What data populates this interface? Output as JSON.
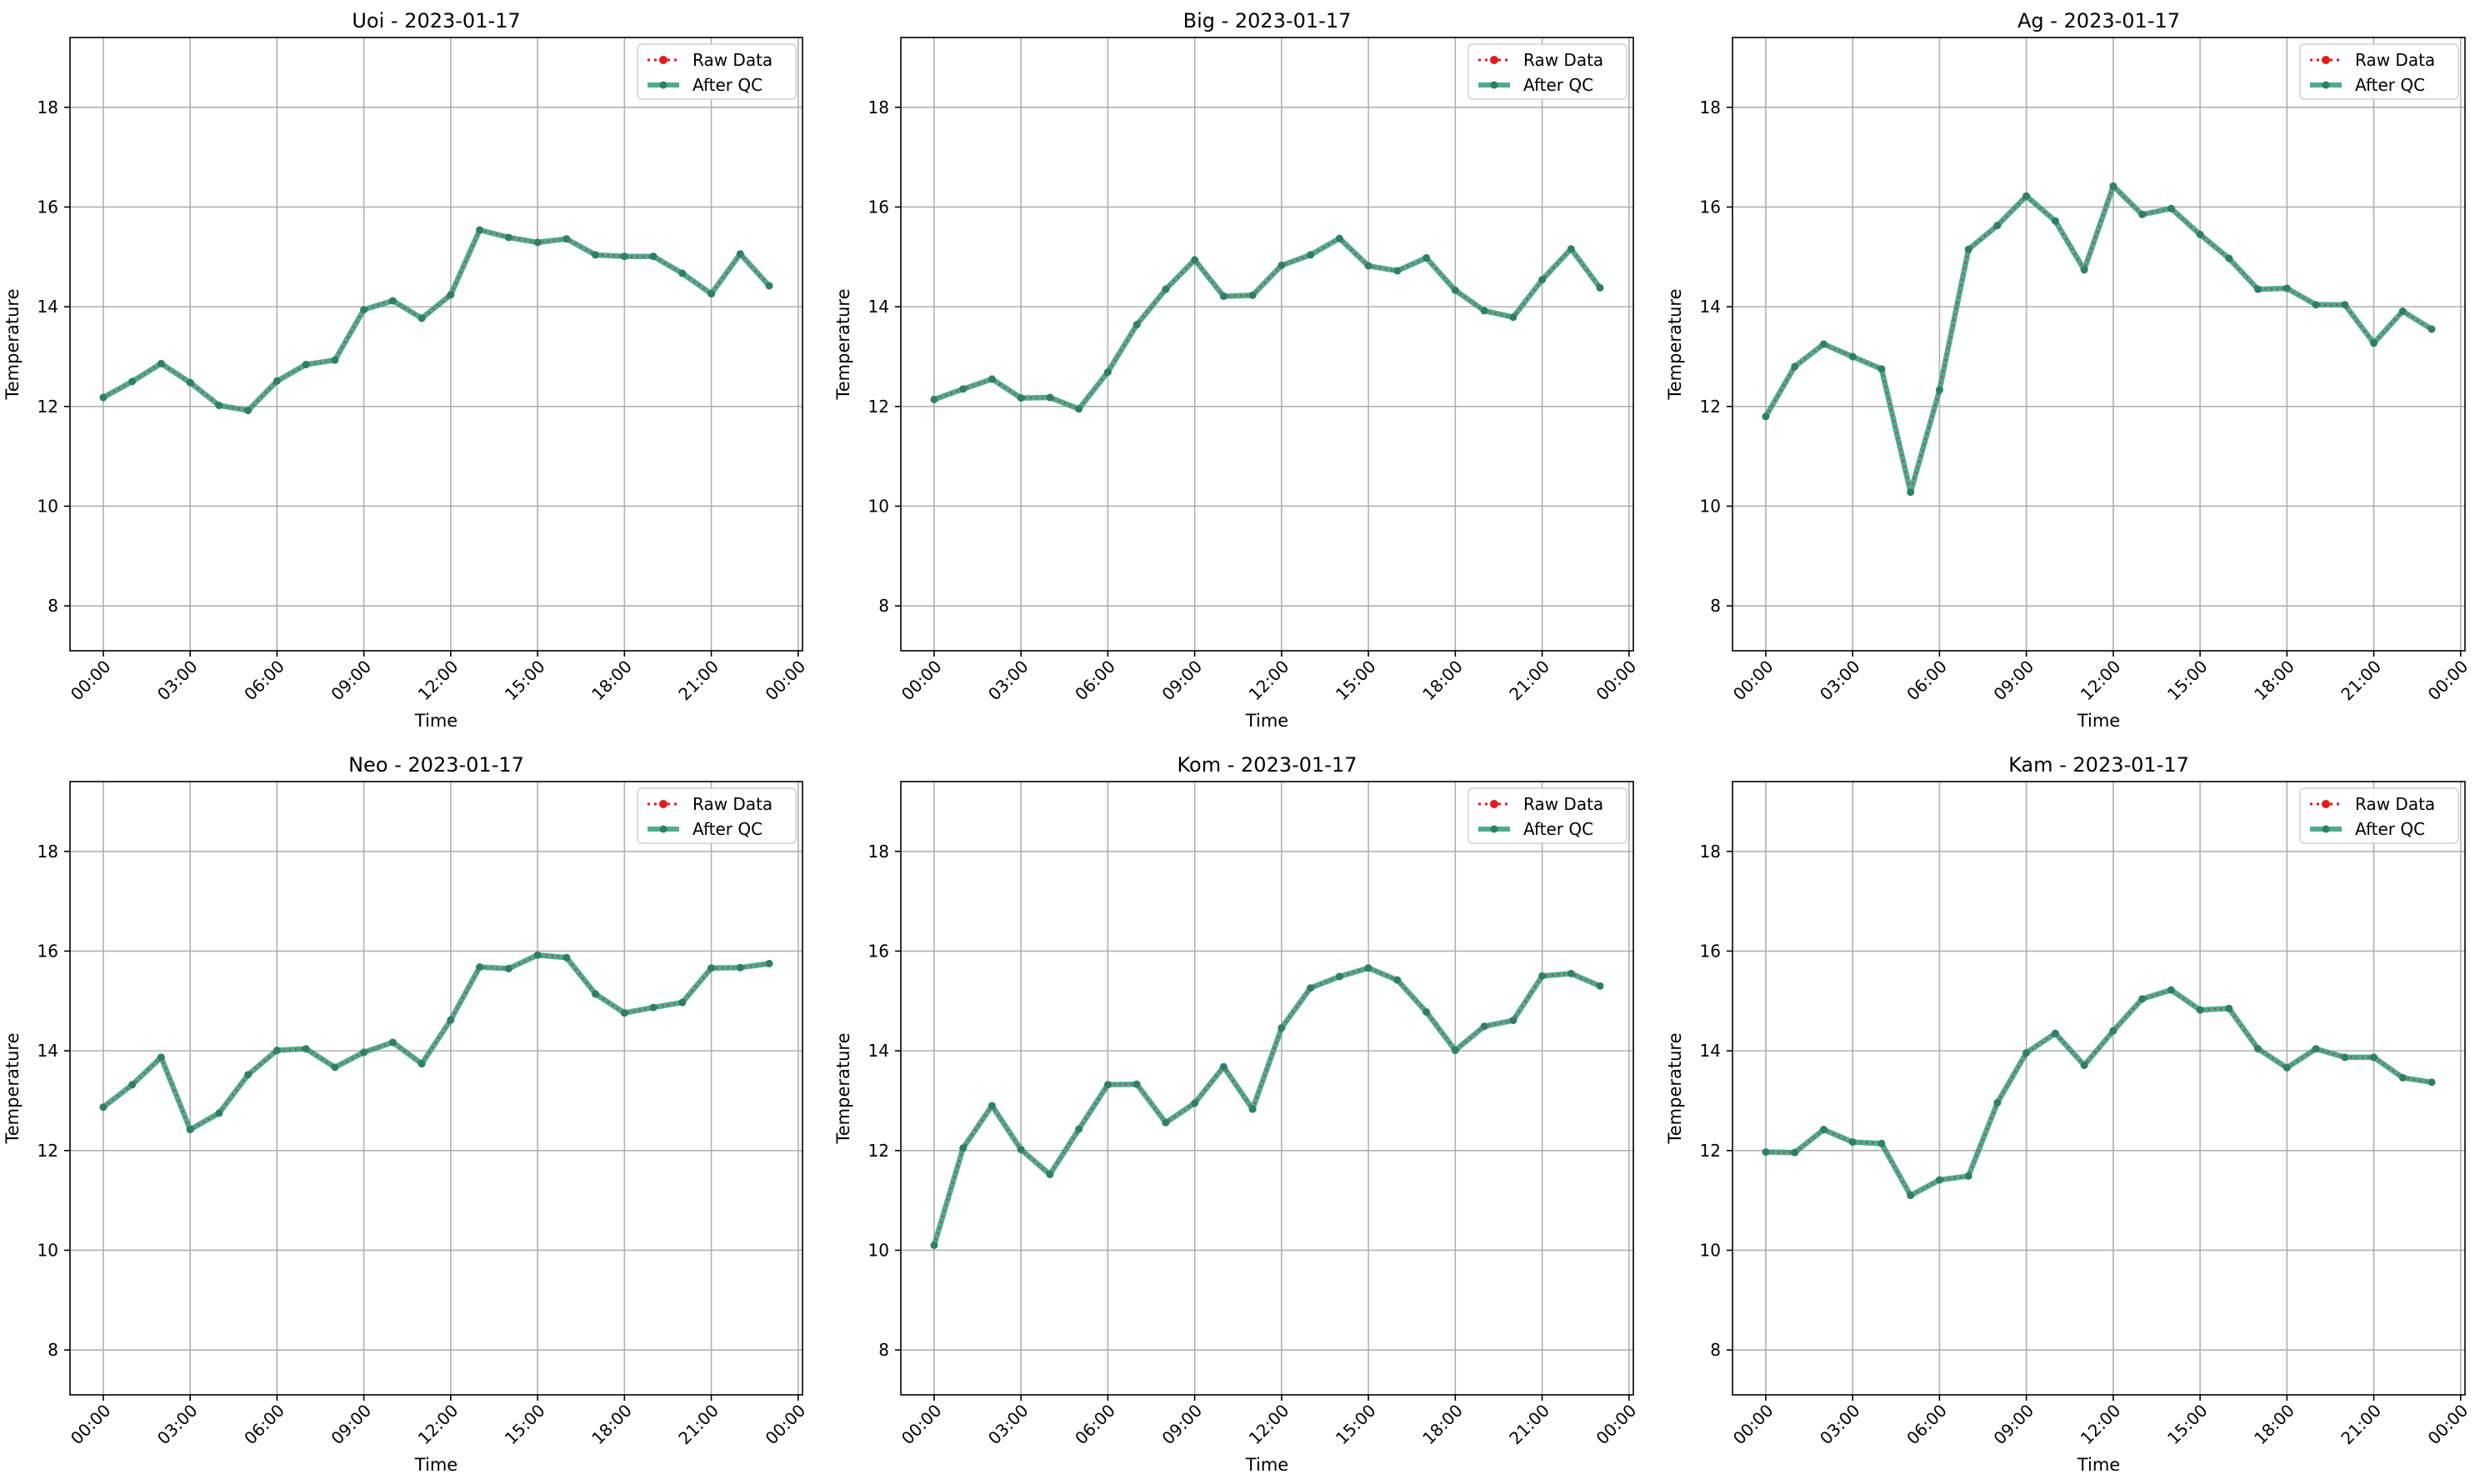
{
  "figure": {
    "legend": {
      "raw_label": "Raw Data",
      "qc_label": "After QC"
    },
    "colors": {
      "raw": "#e31a1c",
      "qc": "#2e9e7c",
      "qc_marker": "#2f7f66",
      "grid": "#b0b0b0",
      "axis": "#000000"
    }
  },
  "chart_data": [
    {
      "type": "line",
      "title": "Uoi - 2023-01-17",
      "xlabel": "Time",
      "ylabel": "Temperature",
      "x": [
        "00:00",
        "01:00",
        "02:00",
        "03:00",
        "04:00",
        "05:00",
        "06:00",
        "07:00",
        "08:00",
        "09:00",
        "10:00",
        "11:00",
        "12:00",
        "13:00",
        "14:00",
        "15:00",
        "16:00",
        "17:00",
        "18:00",
        "19:00",
        "20:00",
        "21:00",
        "22:00",
        "23:00"
      ],
      "xticks": [
        "00:00",
        "03:00",
        "06:00",
        "09:00",
        "12:00",
        "15:00",
        "18:00",
        "21:00",
        "00:00"
      ],
      "ylim": [
        7.1,
        19.4
      ],
      "yticks": [
        8,
        10,
        12,
        14,
        16,
        18
      ],
      "grid": true,
      "legend_position": "upper-right",
      "series": [
        {
          "name": "Raw Data",
          "values": [
            12.18,
            12.5,
            12.86,
            12.48,
            12.02,
            11.92,
            12.51,
            12.84,
            12.93,
            13.94,
            14.12,
            13.77,
            14.24,
            15.54,
            15.39,
            15.29,
            15.36,
            15.04,
            15.01,
            15.01,
            14.67,
            14.26,
            15.06,
            14.42
          ]
        },
        {
          "name": "After QC",
          "values": [
            12.18,
            12.5,
            12.86,
            12.48,
            12.02,
            11.92,
            12.51,
            12.84,
            12.93,
            13.94,
            14.12,
            13.77,
            14.24,
            15.54,
            15.39,
            15.29,
            15.36,
            15.04,
            15.01,
            15.01,
            14.67,
            14.26,
            15.06,
            14.42
          ]
        }
      ]
    },
    {
      "type": "line",
      "title": "Big - 2023-01-17",
      "xlabel": "Time",
      "ylabel": "Temperature",
      "x": [
        "00:00",
        "01:00",
        "02:00",
        "03:00",
        "04:00",
        "05:00",
        "06:00",
        "07:00",
        "08:00",
        "09:00",
        "10:00",
        "11:00",
        "12:00",
        "13:00",
        "14:00",
        "15:00",
        "16:00",
        "17:00",
        "18:00",
        "19:00",
        "20:00",
        "21:00",
        "22:00",
        "23:00"
      ],
      "xticks": [
        "00:00",
        "03:00",
        "06:00",
        "09:00",
        "12:00",
        "15:00",
        "18:00",
        "21:00",
        "00:00"
      ],
      "ylim": [
        7.1,
        19.4
      ],
      "yticks": [
        8,
        10,
        12,
        14,
        16,
        18
      ],
      "grid": true,
      "legend_position": "upper-right",
      "series": [
        {
          "name": "Raw Data",
          "values": [
            12.14,
            12.35,
            12.55,
            12.17,
            12.18,
            11.95,
            12.69,
            13.64,
            14.35,
            14.94,
            14.21,
            14.23,
            14.83,
            15.04,
            15.37,
            14.82,
            14.72,
            14.98,
            14.33,
            13.92,
            13.79,
            14.54,
            15.16,
            14.38
          ]
        },
        {
          "name": "After QC",
          "values": [
            12.14,
            12.35,
            12.55,
            12.17,
            12.18,
            11.95,
            12.69,
            13.64,
            14.35,
            14.94,
            14.21,
            14.23,
            14.83,
            15.04,
            15.37,
            14.82,
            14.72,
            14.98,
            14.33,
            13.92,
            13.79,
            14.54,
            15.16,
            14.38
          ]
        }
      ]
    },
    {
      "type": "line",
      "title": "Ag - 2023-01-17",
      "xlabel": "Time",
      "ylabel": "Temperature",
      "x": [
        "00:00",
        "01:00",
        "02:00",
        "03:00",
        "04:00",
        "05:00",
        "06:00",
        "07:00",
        "08:00",
        "09:00",
        "10:00",
        "11:00",
        "12:00",
        "13:00",
        "14:00",
        "15:00",
        "16:00",
        "17:00",
        "18:00",
        "19:00",
        "20:00",
        "21:00",
        "22:00",
        "23:00"
      ],
      "xticks": [
        "00:00",
        "03:00",
        "06:00",
        "09:00",
        "12:00",
        "15:00",
        "18:00",
        "21:00",
        "00:00"
      ],
      "ylim": [
        7.1,
        19.4
      ],
      "yticks": [
        8,
        10,
        12,
        14,
        16,
        18
      ],
      "grid": true,
      "legend_position": "upper-right",
      "series": [
        {
          "name": "Raw Data",
          "values": [
            11.8,
            12.8,
            13.25,
            13.0,
            12.75,
            10.28,
            12.33,
            15.15,
            15.63,
            16.22,
            15.72,
            14.74,
            16.42,
            15.85,
            15.97,
            15.45,
            14.97,
            14.35,
            14.37,
            14.04,
            14.04,
            13.27,
            13.91,
            13.55
          ]
        },
        {
          "name": "After QC",
          "values": [
            11.8,
            12.8,
            13.25,
            13.0,
            12.75,
            10.28,
            12.33,
            15.15,
            15.63,
            16.22,
            15.72,
            14.74,
            16.42,
            15.85,
            15.97,
            15.45,
            14.97,
            14.35,
            14.37,
            14.04,
            14.04,
            13.27,
            13.91,
            13.55
          ]
        }
      ]
    },
    {
      "type": "line",
      "title": "Neo - 2023-01-17",
      "xlabel": "Time",
      "ylabel": "Temperature",
      "x": [
        "00:00",
        "01:00",
        "02:00",
        "03:00",
        "04:00",
        "05:00",
        "06:00",
        "07:00",
        "08:00",
        "09:00",
        "10:00",
        "11:00",
        "12:00",
        "13:00",
        "14:00",
        "15:00",
        "16:00",
        "17:00",
        "18:00",
        "19:00",
        "20:00",
        "21:00",
        "22:00",
        "23:00"
      ],
      "xticks": [
        "00:00",
        "03:00",
        "06:00",
        "09:00",
        "12:00",
        "15:00",
        "18:00",
        "21:00",
        "00:00"
      ],
      "ylim": [
        7.1,
        19.4
      ],
      "yticks": [
        8,
        10,
        12,
        14,
        16,
        18
      ],
      "grid": true,
      "legend_position": "upper-right",
      "series": [
        {
          "name": "Raw Data",
          "values": [
            12.87,
            13.32,
            13.87,
            12.42,
            12.75,
            13.52,
            14.01,
            14.04,
            13.67,
            13.97,
            14.17,
            13.74,
            14.62,
            15.68,
            15.65,
            15.92,
            15.87,
            15.14,
            14.76,
            14.87,
            14.97,
            15.66,
            15.67,
            15.75
          ]
        },
        {
          "name": "After QC",
          "values": [
            12.87,
            13.32,
            13.87,
            12.42,
            12.75,
            13.52,
            14.01,
            14.04,
            13.67,
            13.97,
            14.17,
            13.74,
            14.62,
            15.68,
            15.65,
            15.92,
            15.87,
            15.14,
            14.76,
            14.87,
            14.97,
            15.66,
            15.67,
            15.75
          ]
        }
      ]
    },
    {
      "type": "line",
      "title": "Kom - 2023-01-17",
      "xlabel": "Time",
      "ylabel": "Temperature",
      "x": [
        "00:00",
        "01:00",
        "02:00",
        "03:00",
        "04:00",
        "05:00",
        "06:00",
        "07:00",
        "08:00",
        "09:00",
        "10:00",
        "11:00",
        "12:00",
        "13:00",
        "14:00",
        "15:00",
        "16:00",
        "17:00",
        "18:00",
        "19:00",
        "20:00",
        "21:00",
        "22:00",
        "23:00"
      ],
      "xticks": [
        "00:00",
        "03:00",
        "06:00",
        "09:00",
        "12:00",
        "15:00",
        "18:00",
        "21:00",
        "00:00"
      ],
      "ylim": [
        7.1,
        19.4
      ],
      "yticks": [
        8,
        10,
        12,
        14,
        16,
        18
      ],
      "grid": true,
      "legend_position": "upper-right",
      "series": [
        {
          "name": "Raw Data",
          "values": [
            10.1,
            12.05,
            12.9,
            12.02,
            11.52,
            12.43,
            13.32,
            13.33,
            12.56,
            12.95,
            13.68,
            12.83,
            14.46,
            15.26,
            15.49,
            15.66,
            15.42,
            14.78,
            14.01,
            14.49,
            14.61,
            15.5,
            15.55,
            15.3
          ]
        },
        {
          "name": "After QC",
          "values": [
            10.1,
            12.05,
            12.9,
            12.02,
            11.52,
            12.43,
            13.32,
            13.33,
            12.56,
            12.95,
            13.68,
            12.83,
            14.46,
            15.26,
            15.49,
            15.66,
            15.42,
            14.78,
            14.01,
            14.49,
            14.61,
            15.5,
            15.55,
            15.3
          ]
        }
      ]
    },
    {
      "type": "line",
      "title": "Kam - 2023-01-17",
      "xlabel": "Time",
      "ylabel": "Temperature",
      "x": [
        "00:00",
        "01:00",
        "02:00",
        "03:00",
        "04:00",
        "05:00",
        "06:00",
        "07:00",
        "08:00",
        "09:00",
        "10:00",
        "11:00",
        "12:00",
        "13:00",
        "14:00",
        "15:00",
        "16:00",
        "17:00",
        "18:00",
        "19:00",
        "20:00",
        "21:00",
        "22:00",
        "23:00"
      ],
      "xticks": [
        "00:00",
        "03:00",
        "06:00",
        "09:00",
        "12:00",
        "15:00",
        "18:00",
        "21:00",
        "00:00"
      ],
      "ylim": [
        7.1,
        19.4
      ],
      "yticks": [
        8,
        10,
        12,
        14,
        16,
        18
      ],
      "grid": true,
      "legend_position": "upper-right",
      "series": [
        {
          "name": "Raw Data",
          "values": [
            11.97,
            11.96,
            12.42,
            12.17,
            12.14,
            11.1,
            11.41,
            11.49,
            12.96,
            13.96,
            14.35,
            13.71,
            14.4,
            15.04,
            15.22,
            14.82,
            14.85,
            14.04,
            13.66,
            14.04,
            13.87,
            13.87,
            13.46,
            13.37
          ]
        },
        {
          "name": "After QC",
          "values": [
            11.97,
            11.96,
            12.42,
            12.17,
            12.14,
            11.1,
            11.41,
            11.49,
            12.96,
            13.96,
            14.35,
            13.71,
            14.4,
            15.04,
            15.22,
            14.82,
            14.85,
            14.04,
            13.66,
            14.04,
            13.87,
            13.87,
            13.46,
            13.37
          ]
        }
      ]
    }
  ]
}
